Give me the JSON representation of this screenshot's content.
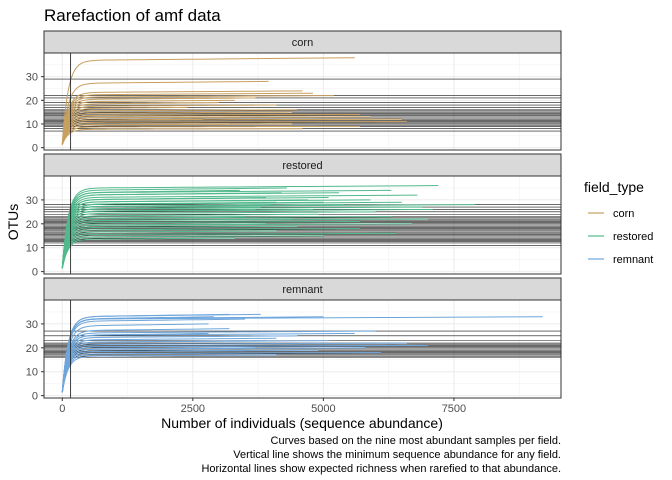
{
  "chart_data": {
    "type": "line",
    "title": "Rarefaction of amf data",
    "xlabel": "Number of individuals (sequence abundance)",
    "ylabel": "OTUs",
    "xlim": [
      -350,
      9550
    ],
    "x_ticks": [
      0,
      2500,
      5000,
      7500
    ],
    "x_tick_labels": [
      "0",
      "2500",
      "5000",
      "7500"
    ],
    "y_ticks": [
      0,
      10,
      20,
      30
    ],
    "y_tick_labels": [
      "0",
      "10",
      "20",
      "30"
    ],
    "grid": true,
    "min_abundance_vline": 160,
    "legend": {
      "title": "field_type",
      "position": "right"
    },
    "caption": [
      "Curves based on the nine most abundant samples per field.",
      "Vertical line shows the minimum sequence abundance for any field.",
      "Horizontal lines show expected richness when rarefied to that abundance."
    ],
    "panels": [
      {
        "strip": "corn",
        "color": "#c8a060",
        "ylim": [
          -1,
          40
        ],
        "curve_ends": [
          [
            5600,
            38
          ],
          [
            3950,
            28
          ],
          [
            4600,
            24
          ],
          [
            4800,
            23
          ],
          [
            5200,
            22
          ],
          [
            3700,
            21
          ],
          [
            3300,
            20
          ],
          [
            3000,
            19
          ],
          [
            4100,
            18
          ],
          [
            2400,
            17
          ],
          [
            4500,
            16
          ],
          [
            4400,
            15
          ],
          [
            4800,
            14
          ],
          [
            5700,
            14
          ],
          [
            3400,
            13
          ],
          [
            5900,
            13
          ],
          [
            6500,
            12
          ],
          [
            2700,
            12
          ],
          [
            6600,
            11
          ],
          [
            4400,
            10
          ],
          [
            3200,
            10
          ],
          [
            5700,
            9
          ],
          [
            4600,
            8
          ]
        ],
        "hlines": [
          29,
          22,
          21,
          19,
          18,
          17,
          16,
          15.5,
          15,
          14.5,
          14,
          13.5,
          13,
          12.5,
          12,
          11.5,
          11,
          10.5,
          10,
          9.5,
          9,
          8,
          7
        ]
      },
      {
        "strip": "restored",
        "color": "#52b98c",
        "ylim": [
          -1,
          40
        ],
        "curve_ends": [
          [
            7200,
            36
          ],
          [
            4300,
            35
          ],
          [
            6300,
            34
          ],
          [
            3400,
            34
          ],
          [
            5300,
            33
          ],
          [
            4200,
            33
          ],
          [
            6800,
            32
          ],
          [
            3900,
            31
          ],
          [
            5100,
            31
          ],
          [
            4700,
            30
          ],
          [
            5900,
            30
          ],
          [
            4100,
            29
          ],
          [
            5000,
            29
          ],
          [
            6500,
            29
          ],
          [
            5400,
            28
          ],
          [
            4000,
            28
          ],
          [
            7900,
            28
          ],
          [
            3800,
            27
          ],
          [
            6900,
            27
          ],
          [
            4800,
            26
          ],
          [
            7100,
            26
          ],
          [
            3700,
            26
          ],
          [
            6000,
            25
          ],
          [
            4900,
            24
          ],
          [
            3500,
            23
          ],
          [
            6300,
            23
          ],
          [
            4400,
            22
          ],
          [
            7000,
            22
          ],
          [
            5700,
            21
          ],
          [
            3900,
            20
          ],
          [
            6700,
            20
          ],
          [
            4500,
            19
          ],
          [
            5700,
            18
          ],
          [
            4100,
            17
          ],
          [
            6400,
            16
          ],
          [
            5000,
            15
          ],
          [
            3300,
            14
          ]
        ],
        "hlines": [
          28,
          27,
          26,
          25,
          24,
          23,
          22.5,
          22,
          21.5,
          21,
          20.5,
          20,
          19.5,
          19,
          18.5,
          18,
          17.5,
          17,
          16.5,
          16,
          15.5,
          15,
          14.5,
          14,
          13.5,
          13,
          12.5,
          12,
          11
        ]
      },
      {
        "strip": "remnant",
        "color": "#6ea6dc",
        "ylim": [
          -1,
          40
        ],
        "curve_ends": [
          [
            9200,
            33
          ],
          [
            3800,
            34
          ],
          [
            3200,
            34
          ],
          [
            2900,
            33
          ],
          [
            5000,
            33
          ],
          [
            3500,
            32
          ],
          [
            2800,
            30
          ],
          [
            3200,
            28
          ],
          [
            6000,
            27
          ],
          [
            5600,
            26
          ],
          [
            2800,
            26
          ],
          [
            4500,
            25
          ],
          [
            4100,
            24
          ],
          [
            3900,
            23
          ],
          [
            5100,
            23
          ],
          [
            6600,
            22
          ],
          [
            7000,
            21
          ],
          [
            6400,
            21
          ],
          [
            3700,
            20
          ],
          [
            5800,
            20
          ],
          [
            4900,
            19
          ],
          [
            3500,
            19
          ],
          [
            6100,
            18
          ],
          [
            4100,
            17
          ]
        ],
        "hlines": [
          27,
          25,
          23,
          22,
          21.5,
          21,
          20.5,
          20,
          19.5,
          19,
          18.5,
          18,
          17.5,
          17,
          16.5,
          16
        ]
      }
    ]
  }
}
